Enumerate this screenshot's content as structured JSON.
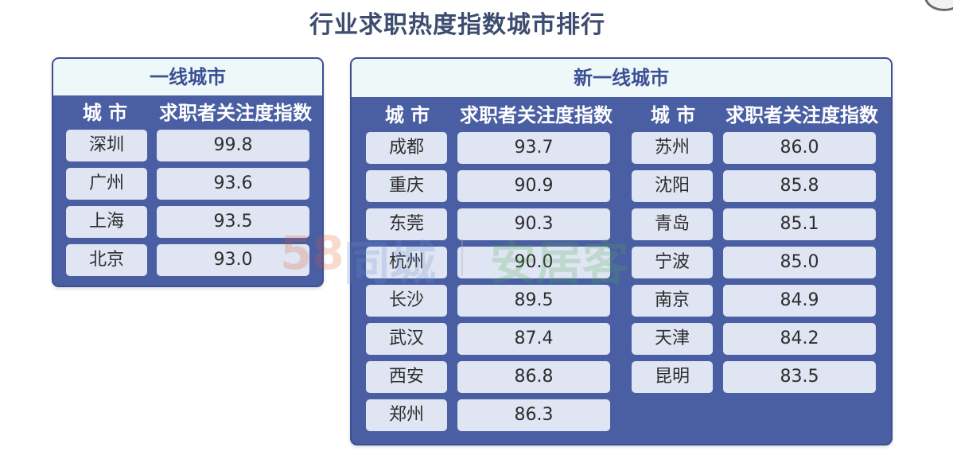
{
  "title": "行业求职热度指数城市排行",
  "tier1": {
    "title": "一线城市",
    "headers": {
      "city": "城 市",
      "index": "求职者关注度指数"
    },
    "rows": [
      {
        "city": "深圳",
        "value": "99.8"
      },
      {
        "city": "广州",
        "value": "93.6"
      },
      {
        "city": "上海",
        "value": "93.5"
      },
      {
        "city": "北京",
        "value": "93.0"
      }
    ]
  },
  "new_tier1": {
    "title": "新一线城市",
    "left": {
      "headers": {
        "city": "城 市",
        "index": "求职者关注度指数"
      },
      "rows": [
        {
          "city": "成都",
          "value": "93.7"
        },
        {
          "city": "重庆",
          "value": "90.9"
        },
        {
          "city": "东莞",
          "value": "90.3"
        },
        {
          "city": "杭州",
          "value": "90.0"
        },
        {
          "city": "长沙",
          "value": "89.5"
        },
        {
          "city": "武汉",
          "value": "87.4"
        },
        {
          "city": "西安",
          "value": "86.8"
        },
        {
          "city": "郑州",
          "value": "86.3"
        }
      ]
    },
    "right": {
      "headers": {
        "city": "城 市",
        "index": "求职者关注度指数"
      },
      "rows": [
        {
          "city": "苏州",
          "value": "86.0"
        },
        {
          "city": "沈阳",
          "value": "85.8"
        },
        {
          "city": "青岛",
          "value": "85.1"
        },
        {
          "city": "宁波",
          "value": "85.0"
        },
        {
          "city": "南京",
          "value": "84.9"
        },
        {
          "city": "天津",
          "value": "84.2"
        },
        {
          "city": "昆明",
          "value": "83.5"
        }
      ]
    }
  },
  "watermark": {
    "brand1_num": "58",
    "brand1_text": "同城",
    "brand2_text": "安居客"
  }
}
